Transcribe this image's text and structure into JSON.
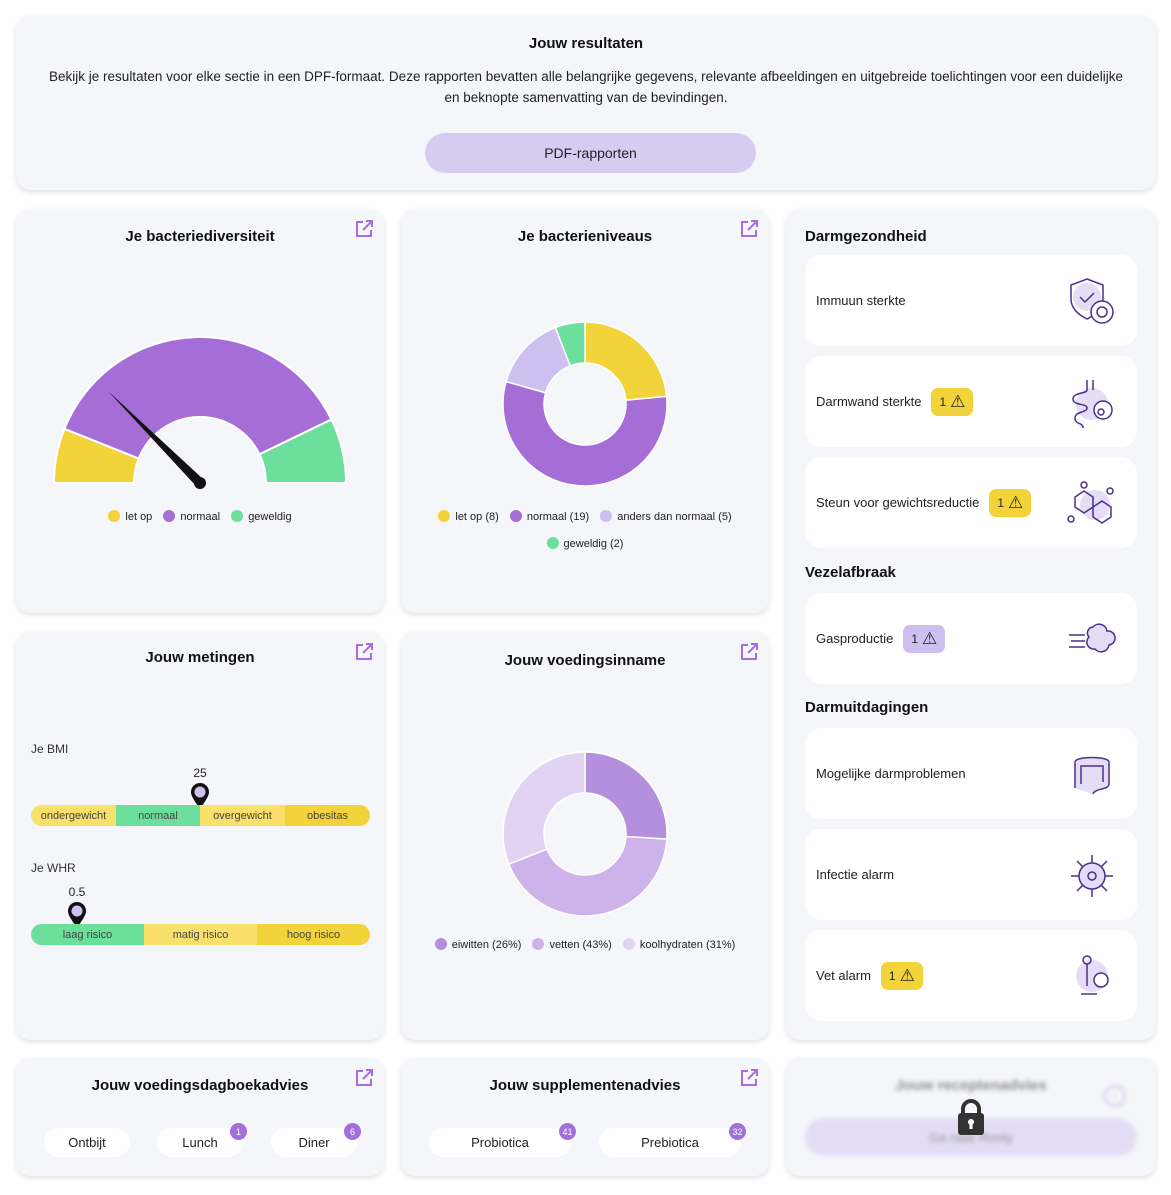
{
  "header": {
    "title": "Jouw resultaten",
    "description": "Bekijk je resultaten voor elke sectie in een DPF-formaat. Deze rapporten bevatten alle belangrijke gegevens, relevante afbeeldingen en uitgebreide toelichtingen voor een duidelijke en beknopte samenvatting van de bevindingen.",
    "button": "PDF-rapporten"
  },
  "diversity": {
    "title": "Je bacteriediversiteit",
    "legend": [
      "let op",
      "normaal",
      "geweldig"
    ],
    "colors": [
      "#f2d43a",
      "#a56ed6",
      "#6ddf9d"
    ],
    "needle_fraction": 0.25
  },
  "levels": {
    "title": "Je bacterieniveaus",
    "chart_data": {
      "type": "pie",
      "categories": [
        "let op",
        "normaal",
        "anders dan normaal",
        "geweldig"
      ],
      "values": [
        8,
        19,
        5,
        2
      ],
      "colors": [
        "#f2d43a",
        "#a56ed6",
        "#cdbff0",
        "#6ddf9d"
      ]
    },
    "legend": [
      "let op (8)",
      "normaal (19)",
      "anders dan normaal (5)",
      "geweldig (2)"
    ]
  },
  "metingen": {
    "title": "Jouw metingen",
    "bmi_label": "Je BMI",
    "bmi_value": "25",
    "bmi_segments": [
      "ondergewicht",
      "normaal",
      "overgewicht",
      "obesitas"
    ],
    "whr_label": "Je WHR",
    "whr_value": "0.5",
    "whr_segments": [
      "laag risico",
      "matig risico",
      "hoog risico"
    ]
  },
  "voeding": {
    "title": "Jouw voedingsinname",
    "chart_data": {
      "type": "pie",
      "categories": [
        "eiwitten",
        "vetten",
        "koolhydraten"
      ],
      "values": [
        26,
        43,
        31
      ],
      "colors": [
        "#b48fde",
        "#cdb3ea",
        "#e2d3f3"
      ]
    },
    "legend": [
      "eiwitten (26%)",
      "vetten (43%)",
      "koolhydraten (31%)"
    ]
  },
  "darm": {
    "title": "Darmgezondheid",
    "items": [
      {
        "label": "Immuun sterkte"
      },
      {
        "label": "Darmwand sterkte",
        "badge": "1"
      },
      {
        "label": "Steun voor gewichtsreductie",
        "badge": "1"
      }
    ],
    "vezel_title": "Vezelafbraak",
    "vezel_items": [
      {
        "label": "Gasproductie",
        "badge": "1"
      }
    ],
    "uitd_title": "Darmuitdagingen",
    "uitd_items": [
      {
        "label": "Mogelijke darmproblemen"
      },
      {
        "label": "Infectie alarm"
      },
      {
        "label": "Vet alarm",
        "badge": "1"
      }
    ]
  },
  "dagboek": {
    "title": "Jouw voedingsdagboekadvies",
    "pills": [
      {
        "label": "Ontbijt"
      },
      {
        "label": "Lunch",
        "count": "1"
      },
      {
        "label": "Diner",
        "count": "6"
      }
    ]
  },
  "supplement": {
    "title": "Jouw supplementenadvies",
    "pills": [
      {
        "label": "Probiotica",
        "count": "41"
      },
      {
        "label": "Prebiotica",
        "count": "32"
      }
    ]
  },
  "recepten": {
    "title": "Jouw receptenadvies",
    "button": "Ga naar Rooty"
  }
}
